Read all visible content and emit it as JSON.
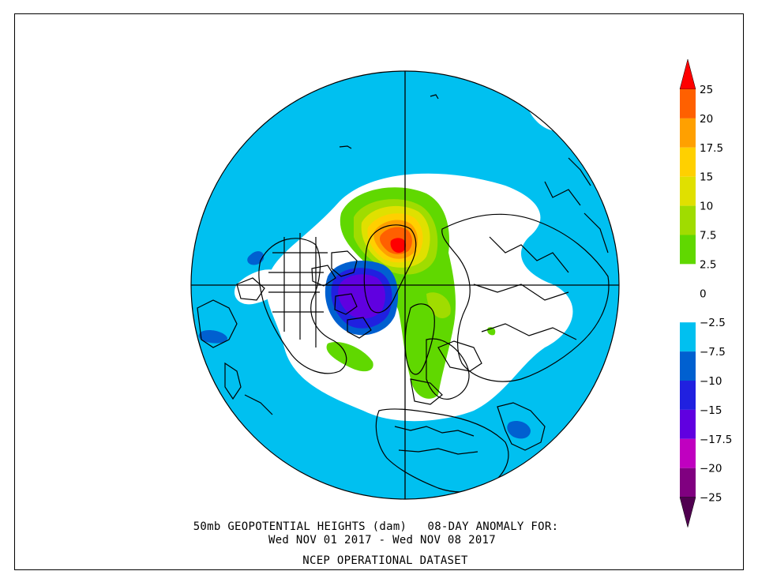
{
  "map": {
    "projection": "north-polar-stereographic",
    "field": "50mb geopotential height anomaly",
    "background_color": "#00c0f0",
    "coastline_color": "#000000",
    "anomaly_centers": [
      {
        "sign": "positive",
        "location": "north of Scandinavia / Barents Sea",
        "max_level": "25"
      },
      {
        "sign": "negative",
        "location": "Canadian Arctic / Baffin Bay",
        "min_level": "-17.5"
      }
    ]
  },
  "colorbar": {
    "levels": [
      {
        "label": "25",
        "color": "#ff0000"
      },
      {
        "label": "20",
        "color": "#ff6000"
      },
      {
        "label": "17.5",
        "color": "#ffa000"
      },
      {
        "label": "15",
        "color": "#ffd000"
      },
      {
        "label": "10",
        "color": "#e0e000"
      },
      {
        "label": "7.5",
        "color": "#a0dc00"
      },
      {
        "label": "2.5",
        "color": "#60d800"
      },
      {
        "label": "0",
        "color": "#ffffff"
      },
      {
        "label": "-2.5",
        "color": "#ffffff"
      },
      {
        "label": "-7.5",
        "color": "#00c0f0"
      },
      {
        "label": "-10",
        "color": "#0060d0"
      },
      {
        "label": "-15",
        "color": "#2020e0"
      },
      {
        "label": "-17.5",
        "color": "#6000e0"
      },
      {
        "label": "-20",
        "color": "#c000c0"
      },
      {
        "label": "-25",
        "color": "#800080"
      }
    ],
    "top_arrow_color": "#ff0000",
    "bottom_arrow_color": "#500050"
  },
  "caption": {
    "line1": "50mb GEOPOTENTIAL HEIGHTS (dam)   08-DAY ANOMALY FOR:",
    "line2": "Wed NOV 01 2017 - Wed NOV 08 2017",
    "line3": "NCEP OPERATIONAL DATASET"
  }
}
